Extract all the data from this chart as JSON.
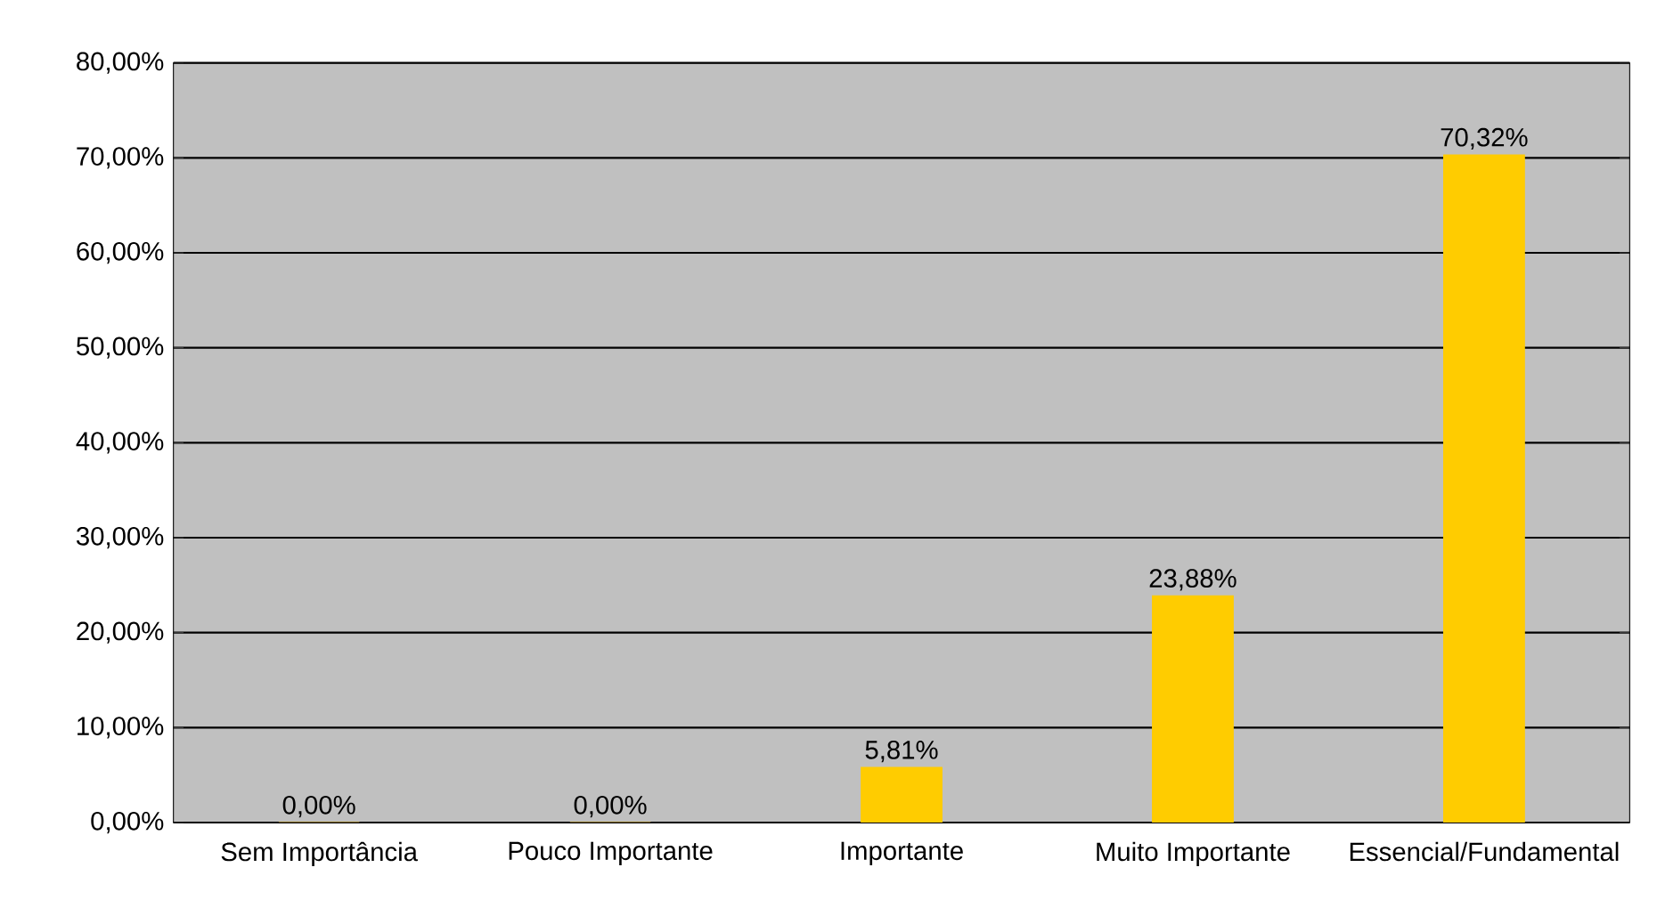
{
  "chart_data": {
    "type": "bar",
    "categories": [
      "Sem Importância",
      "Pouco Importante",
      "Importante",
      "Muito Importante",
      "Essencial/Fundamental"
    ],
    "values": [
      0,
      0,
      5.81,
      23.88,
      70.32
    ],
    "value_labels": [
      "0,00%",
      "0,00%",
      "5,81%",
      "23,88%",
      "70,32%"
    ],
    "color": "#ffcc00",
    "ylim": [
      0,
      80
    ],
    "yticks": [
      {
        "value": 0,
        "label": "0,00%"
      },
      {
        "value": 10,
        "label": "10,00%"
      },
      {
        "value": 20,
        "label": "20,00%"
      },
      {
        "value": 30,
        "label": "30,00%"
      },
      {
        "value": 40,
        "label": "40,00%"
      },
      {
        "value": 50,
        "label": "50,00%"
      },
      {
        "value": 60,
        "label": "60,00%"
      },
      {
        "value": 70,
        "label": "70,00%"
      },
      {
        "value": 80,
        "label": "80,00%"
      }
    ],
    "grid": "y"
  }
}
